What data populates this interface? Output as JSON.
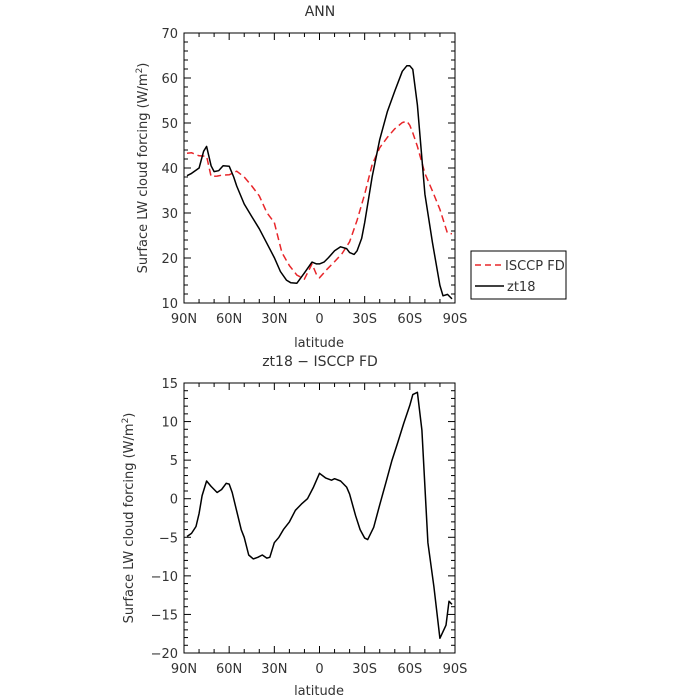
{
  "chart_data": [
    {
      "type": "line",
      "title": "ANN",
      "xlabel": "latitude",
      "ylabel_prefix": "Surface LW cloud forcing (W/m",
      "ylabel_sup": "2",
      "ylabel_suffix": ")",
      "xlim": [
        90,
        -90
      ],
      "ylim": [
        10,
        70
      ],
      "x_ticks": [
        90,
        60,
        30,
        0,
        -30,
        -60,
        -90
      ],
      "x_tick_labels": [
        "90N",
        "60N",
        "30N",
        "0",
        "30S",
        "60S",
        "90S"
      ],
      "y_ticks": [
        10,
        20,
        30,
        40,
        50,
        60,
        70
      ],
      "y_tick_labels": [
        "10",
        "20",
        "30",
        "40",
        "50",
        "60",
        "70"
      ],
      "legend_position": "right",
      "series": [
        {
          "name": "ISCCP FD",
          "color": "#e8262a",
          "dash": "dashed",
          "x": [
            88,
            85,
            80,
            75,
            72,
            68,
            65,
            60,
            55,
            50,
            45,
            40,
            35,
            30,
            25,
            20,
            15,
            10,
            5,
            2,
            0,
            -5,
            -10,
            -15,
            -20,
            -25,
            -30,
            -35,
            -40,
            -45,
            -50,
            -55,
            -58,
            -60,
            -62,
            -65,
            -70,
            -75,
            -80,
            -85,
            -88
          ],
          "y": [
            43.3,
            43.4,
            42.7,
            42.6,
            38.1,
            38.2,
            38.4,
            38.5,
            39.3,
            38.0,
            36.0,
            33.8,
            30.1,
            27.9,
            21.2,
            18.3,
            16.2,
            15.3,
            18.7,
            16.3,
            15.6,
            17.5,
            19.2,
            21.0,
            23.6,
            28.4,
            34.2,
            40.8,
            44.5,
            46.8,
            48.7,
            50.1,
            50.4,
            49.5,
            47.8,
            44.8,
            38.8,
            34.9,
            30.8,
            25.5,
            25.4
          ]
        },
        {
          "name": "zt18",
          "color": "#000000",
          "dash": "solid",
          "x": [
            88,
            85,
            80,
            77,
            75,
            72,
            70,
            67,
            64,
            60,
            57,
            55,
            50,
            45,
            40,
            35,
            30,
            26,
            22,
            19,
            15,
            10,
            5,
            2,
            0,
            -3,
            -6,
            -10,
            -14,
            -18,
            -20,
            -23,
            -25,
            -28,
            -30,
            -35,
            -40,
            -45,
            -50,
            -55,
            -58,
            -60,
            -62,
            -65,
            -70,
            -75,
            -80,
            -82,
            -85,
            -88
          ],
          "y": [
            38.3,
            38.8,
            40.0,
            43.7,
            44.8,
            40.5,
            39.2,
            39.4,
            40.5,
            40.4,
            38.0,
            36.0,
            32.0,
            29.2,
            26.5,
            23.3,
            20.1,
            17.0,
            15.1,
            14.5,
            14.4,
            16.7,
            19.1,
            18.7,
            18.7,
            19.1,
            20.1,
            21.6,
            22.5,
            22.1,
            21.2,
            20.8,
            21.6,
            24.4,
            27.9,
            38.1,
            46.3,
            52.5,
            57.1,
            61.5,
            62.7,
            62.7,
            61.9,
            54.0,
            34.2,
            23.5,
            13.9,
            11.6,
            11.9,
            10.9
          ]
        }
      ]
    },
    {
      "type": "line",
      "title": "zt18 − ISCCP FD",
      "xlabel": "latitude",
      "ylabel_prefix": "Surface LW cloud forcing (W/m",
      "ylabel_sup": "2",
      "ylabel_suffix": ")",
      "xlim": [
        90,
        -90
      ],
      "ylim": [
        -20,
        15
      ],
      "x_ticks": [
        90,
        60,
        30,
        0,
        -30,
        -60,
        -90
      ],
      "x_tick_labels": [
        "90N",
        "60N",
        "30N",
        "0",
        "30S",
        "60S",
        "90S"
      ],
      "y_ticks": [
        -20,
        -15,
        -10,
        -5,
        0,
        5,
        10,
        15
      ],
      "y_tick_labels": [
        "−20",
        "−15",
        "−10",
        "−5",
        "0",
        "5",
        "10",
        "15"
      ],
      "series": [
        {
          "color": "#000000",
          "dash": "solid",
          "x": [
            88,
            85,
            82,
            80,
            78,
            75,
            72,
            68,
            65,
            62,
            60,
            58,
            55,
            52,
            50,
            47,
            44,
            41,
            38,
            35,
            33,
            30,
            27,
            24,
            20,
            16,
            12,
            8,
            4,
            0,
            -4,
            -8,
            -10,
            -14,
            -18,
            -20,
            -24,
            -27,
            -30,
            -32,
            -36,
            -40,
            -44,
            -48,
            -52,
            -56,
            -60,
            -62,
            -65,
            -68,
            -72,
            -76,
            -80,
            -84,
            -86,
            -88
          ],
          "y": [
            -4.9,
            -4.5,
            -3.6,
            -1.9,
            0.4,
            2.3,
            1.6,
            0.8,
            1.2,
            2.0,
            1.9,
            0.8,
            -1.6,
            -4.0,
            -5.0,
            -7.3,
            -7.8,
            -7.6,
            -7.3,
            -7.7,
            -7.6,
            -5.7,
            -5.0,
            -4.0,
            -3.0,
            -1.5,
            -0.7,
            0.0,
            1.5,
            3.3,
            2.7,
            2.4,
            2.6,
            2.3,
            1.5,
            0.6,
            -2.2,
            -4.0,
            -5.1,
            -5.3,
            -3.7,
            -0.8,
            2.0,
            4.9,
            7.3,
            9.8,
            12.1,
            13.5,
            13.8,
            8.9,
            -5.7,
            -11.4,
            -18.1,
            -16.4,
            -13.3,
            -13.7
          ]
        }
      ]
    }
  ]
}
